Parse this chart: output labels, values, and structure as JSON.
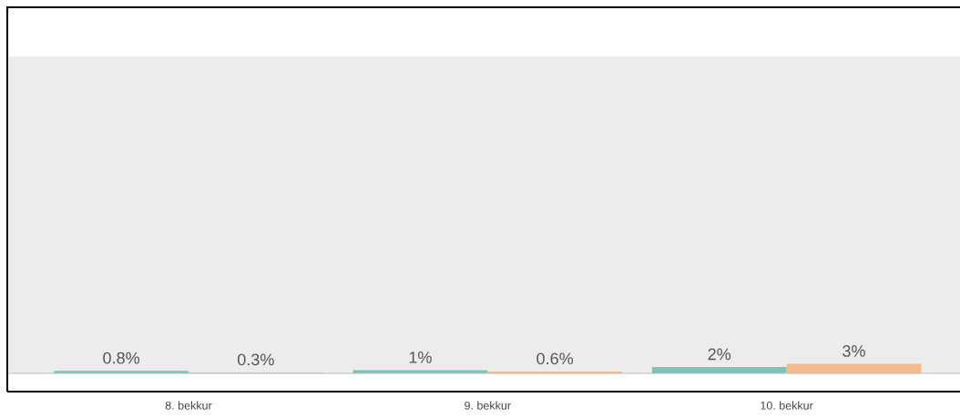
{
  "chart_data": {
    "type": "bar",
    "categories": [
      "8. bekkur",
      "9. bekkur",
      "10. bekkur"
    ],
    "series": [
      {
        "color": "#7cc4b8",
        "values": [
          0.8,
          1,
          2
        ],
        "value_labels": [
          "0.8%",
          "1%",
          "2%"
        ]
      },
      {
        "color": "#f4bc8c",
        "values": [
          0.3,
          0.6,
          3
        ],
        "value_labels": [
          "0.3%",
          "0.6%",
          "3%"
        ]
      }
    ],
    "ylim": [
      0,
      100
    ],
    "tick_labels": "x",
    "grid": false,
    "legend": false
  }
}
